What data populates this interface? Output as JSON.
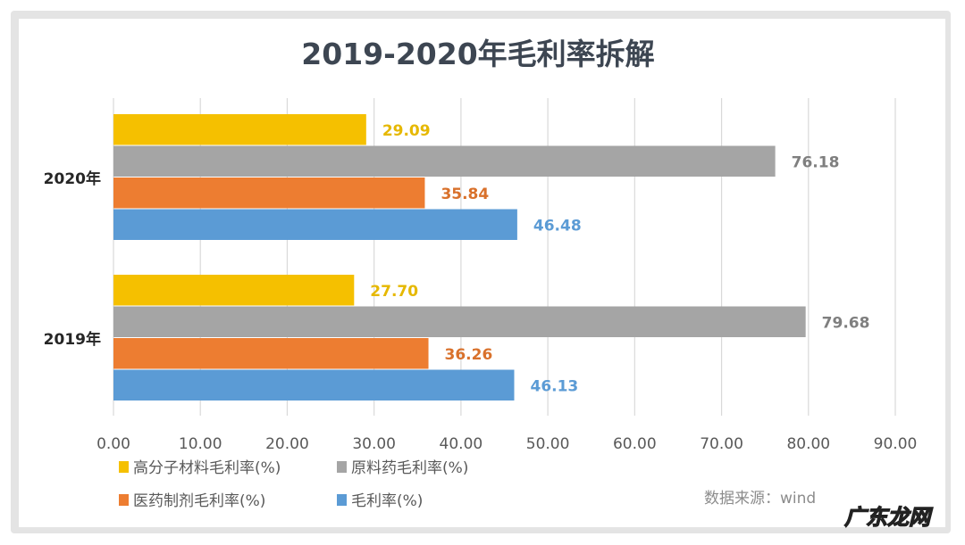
{
  "chart_data": {
    "type": "bar",
    "orientation": "horizontal",
    "title": "2019-2020年毛利率拆解",
    "categories": [
      "2020年",
      "2019年"
    ],
    "series": [
      {
        "name": "高分子材料毛利率(%)",
        "color": "#f5c000",
        "values": [
          29.09,
          27.7
        ],
        "labels": [
          "29.09",
          "27.70"
        ]
      },
      {
        "name": "原料药毛利率(%)",
        "color": "#a5a5a5",
        "values": [
          76.18,
          79.68
        ],
        "labels": [
          "76.18",
          "79.68"
        ]
      },
      {
        "name": "医药制剂毛利率(%)",
        "color": "#ed7d31",
        "values": [
          35.84,
          36.26
        ],
        "labels": [
          "35.84",
          "36.26"
        ]
      },
      {
        "name": "毛利率(%)",
        "color": "#5b9bd5",
        "values": [
          46.48,
          46.13
        ],
        "labels": [
          "46.48",
          "46.13"
        ]
      }
    ],
    "label_colors": [
      "#e6b800",
      "#7f7f7f",
      "#d9712b",
      "#5b9bd5"
    ],
    "xlim": [
      0,
      90
    ],
    "xticks": [
      "0.00",
      "10.00",
      "20.00",
      "30.00",
      "40.00",
      "50.00",
      "60.00",
      "70.00",
      "80.00",
      "90.00"
    ],
    "grid": "vertical",
    "legend_position": "bottom"
  },
  "source_note": "数据来源：wind",
  "watermark": "广东龙网"
}
